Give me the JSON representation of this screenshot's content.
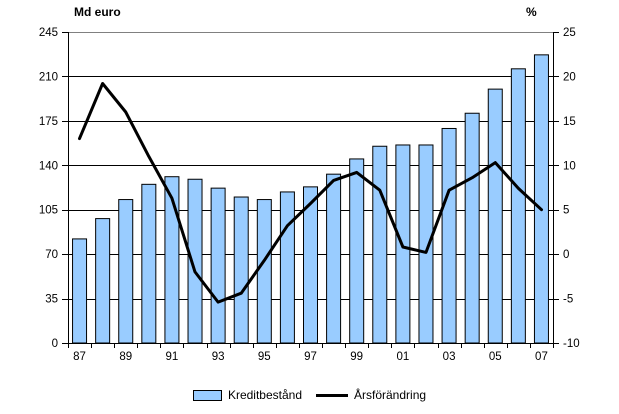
{
  "chart_data": {
    "type": "bar",
    "subtype": "combo bar + line, dual axis",
    "categories": [
      "1987",
      "1988",
      "1989",
      "1990",
      "1991",
      "1992",
      "1993",
      "1994",
      "1995",
      "1996",
      "1997",
      "1998",
      "1999",
      "2000",
      "2001",
      "2002",
      "2003",
      "2004",
      "2005",
      "2006",
      "2007"
    ],
    "x_axis": {
      "tick_labels_shown": [
        "87",
        "89",
        "91",
        "93",
        "95",
        "97",
        "99",
        "01",
        "03",
        "05",
        "07"
      ],
      "label_every": 2
    },
    "left_axis": {
      "title": "Md euro",
      "min": 0,
      "max": 245,
      "step": 35,
      "ticks": [
        0,
        35,
        70,
        105,
        140,
        175,
        210,
        245
      ]
    },
    "right_axis": {
      "title": "%",
      "min": -10,
      "max": 25,
      "step": 5,
      "ticks": [
        -10,
        -5,
        0,
        5,
        10,
        15,
        20,
        25
      ]
    },
    "series": [
      {
        "name": "Kreditbestånd",
        "type": "bar",
        "axis": "left",
        "color": "#99CCFF",
        "border_color": "#000000",
        "values": [
          82,
          98,
          113,
          125,
          131,
          129,
          122,
          115,
          113,
          119,
          123,
          133,
          145,
          155,
          156,
          156,
          169,
          181,
          200,
          216,
          227
        ]
      },
      {
        "name": "Årsförändring",
        "type": "line",
        "axis": "right",
        "color": "#000000",
        "line_width": 3,
        "values": [
          13.0,
          19.2,
          16.0,
          11.0,
          6.3,
          -2.0,
          -5.4,
          -4.4,
          -0.7,
          3.2,
          5.7,
          8.3,
          9.2,
          7.2,
          0.8,
          0.2,
          7.2,
          8.6,
          10.3,
          7.4,
          5.0
        ]
      }
    ],
    "grid": "horizontal",
    "grid_color": "#000000",
    "top_border_color": "#808080",
    "legend_position": "bottom-center",
    "background": "#FFFFFF"
  }
}
